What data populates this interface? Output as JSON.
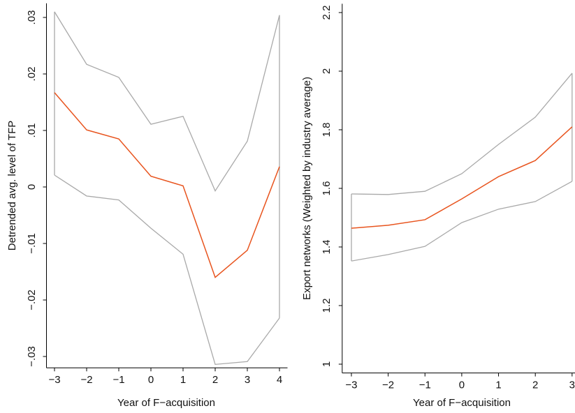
{
  "chart_data": [
    {
      "type": "line",
      "xlabel": "Year of F−acquisition",
      "ylabel": "Detrended avg. level of TFP",
      "x": [
        -3,
        -2,
        -1,
        0,
        1,
        2,
        3,
        4
      ],
      "xlim": [
        -3.25,
        4.25
      ],
      "xticks": [
        {
          "value": -3,
          "label": "−3"
        },
        {
          "value": -2,
          "label": "−2"
        },
        {
          "value": -1,
          "label": "−1"
        },
        0,
        1,
        2,
        3,
        4
      ],
      "ylim": [
        -0.032,
        0.0325
      ],
      "yticks": [
        {
          "value": -0.03,
          "label": "−.03"
        },
        {
          "value": -0.02,
          "label": "−.02"
        },
        {
          "value": -0.01,
          "label": "−.01"
        },
        0,
        {
          "value": 0.01,
          "label": ".01"
        },
        {
          "value": 0.02,
          "label": ".02"
        },
        {
          "value": 0.03,
          "label": ".03"
        }
      ],
      "series": [
        {
          "color": "#e8541e",
          "values": [
            0.0167,
            0.0101,
            0.0085,
            0.0019,
            0.0002,
            -0.016,
            -0.0112,
            0.0036
          ]
        }
      ],
      "band": {
        "color": "#a9a9a9",
        "upper": [
          0.031,
          0.0217,
          0.0194,
          0.0111,
          0.0125,
          -0.0007,
          0.0081,
          0.0304
        ],
        "lower": [
          0.0021,
          -0.0016,
          -0.0023,
          -0.0073,
          -0.0119,
          -0.0314,
          -0.0309,
          -0.0232
        ]
      }
    },
    {
      "type": "line",
      "xlabel": "Year of F−acquisition",
      "ylabel": "Export networks (Weighted by industry average)",
      "x": [
        -3,
        -2,
        -1,
        0,
        1,
        2,
        3
      ],
      "xlim": [
        -3.25,
        3.25
      ],
      "xticks": [
        {
          "value": -3,
          "label": "−3"
        },
        {
          "value": -2,
          "label": "−2"
        },
        {
          "value": -1,
          "label": "−1"
        },
        0,
        1,
        2,
        3
      ],
      "ylim": [
        0.97,
        2.23
      ],
      "yticks": [
        1,
        1.2,
        1.4,
        1.6,
        1.8,
        2,
        2.2
      ],
      "series": [
        {
          "color": "#e8541e",
          "values": [
            1.464,
            1.474,
            1.493,
            1.564,
            1.64,
            1.695,
            1.81
          ]
        }
      ],
      "band": {
        "color": "#a9a9a9",
        "upper": [
          1.581,
          1.579,
          1.59,
          1.65,
          1.75,
          1.843,
          1.993
        ],
        "lower": [
          1.352,
          1.374,
          1.402,
          1.483,
          1.529,
          1.555,
          1.624
        ]
      }
    }
  ]
}
